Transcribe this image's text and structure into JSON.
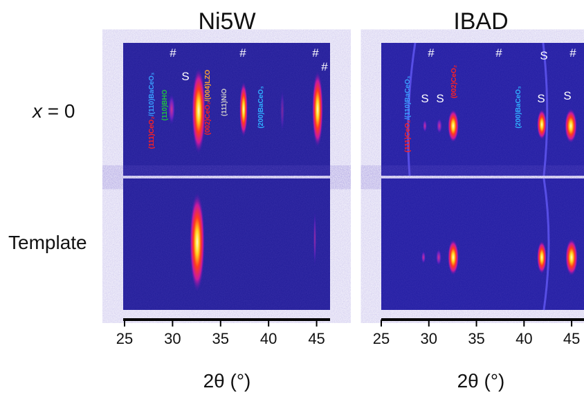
{
  "panels": [
    {
      "title": "Ni5W",
      "axis": {
        "label": "2θ (°)",
        "xlim": [
          25,
          46.4
        ],
        "xticks": [
          25,
          30,
          35,
          40,
          45
        ]
      },
      "markers": [
        "#",
        "#",
        "#",
        "#",
        "S"
      ],
      "peak_labels": [
        [
          "(111)CeO₂",
          "/(110)BaCeO₃"
        ],
        [
          "(110)BHO"
        ],
        [
          "(002)CeO₂",
          "/(004)LZO"
        ],
        [
          "(111)NiO"
        ],
        [
          "(200)BaCeO₃"
        ]
      ]
    },
    {
      "title": "IBAD",
      "axis": {
        "label": "2θ (°)",
        "xlim": [
          25,
          46.3
        ],
        "xticks": [
          25,
          30,
          35,
          40,
          45
        ]
      },
      "markers": [
        "#",
        "#",
        "#",
        "S",
        "S",
        "S",
        "S",
        "S"
      ],
      "peak_labels": [
        [
          "(111)CeO₂",
          "/(110)BaCeO₃"
        ],
        [
          "(002)CeO₂"
        ],
        [
          "(200)BaCeO₃"
        ]
      ]
    }
  ],
  "rows": [
    {
      "variable": "x",
      "text": "= 0"
    },
    {
      "text": "Template"
    }
  ]
}
